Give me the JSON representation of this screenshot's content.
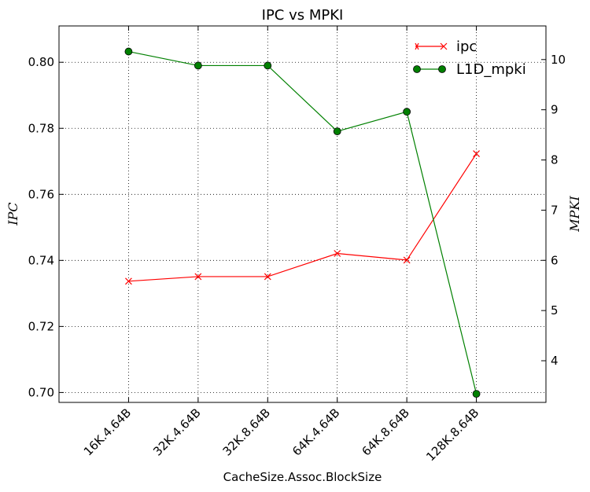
{
  "chart_data": {
    "type": "line",
    "title": "IPC vs MPKI",
    "xlabel": "CacheSize.Assoc.BlockSize",
    "ylabel_left": "IPC",
    "ylabel_right": "MPKI",
    "categories": [
      "16K.4.64B",
      "32K.4.64B",
      "32K.8.64B",
      "64K.4.64B",
      "64K.8.64B",
      "128K.8.64B"
    ],
    "ylim_left": [
      0.697,
      0.811
    ],
    "ylim_right": [
      3.17,
      10.67
    ],
    "yticks_left": [
      "0.70",
      "0.72",
      "0.74",
      "0.76",
      "0.78",
      "0.80"
    ],
    "yticks_right": [
      "4",
      "5",
      "6",
      "7",
      "8",
      "9",
      "10"
    ],
    "grid": true,
    "legend_position": "top-right",
    "series": [
      {
        "name": "ipc",
        "axis": "left",
        "color": "#ff0000",
        "marker": "x",
        "values": [
          0.7337,
          0.7351,
          0.7351,
          0.7421,
          0.7401,
          0.7723
        ]
      },
      {
        "name": "L1D_mpki",
        "axis": "right",
        "color": "#008000",
        "marker": "o",
        "values": [
          10.16,
          9.88,
          9.88,
          8.57,
          8.96,
          3.34
        ]
      }
    ]
  }
}
